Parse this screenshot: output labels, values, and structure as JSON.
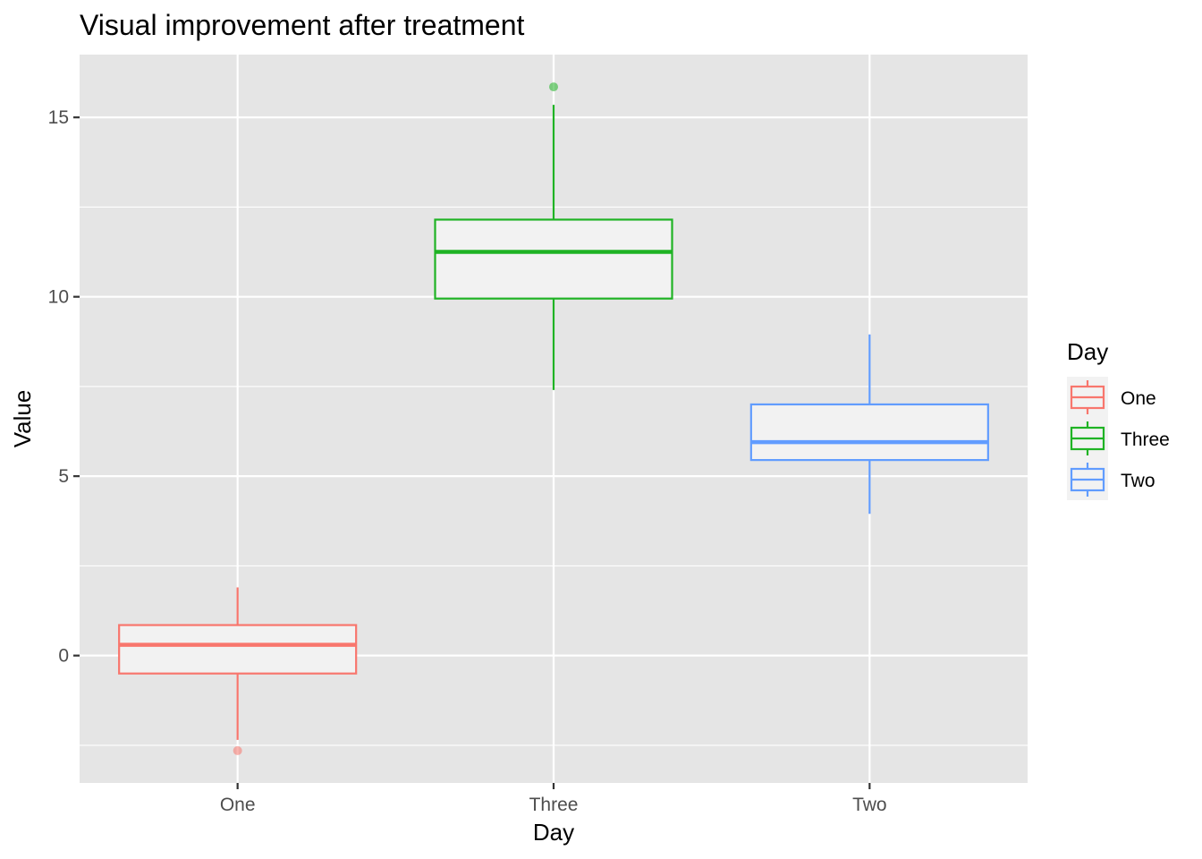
{
  "chart_data": {
    "type": "box",
    "title": "Visual improvement after treatment",
    "xlabel": "Day",
    "ylabel": "Value",
    "categories": [
      "One",
      "Three",
      "Two"
    ],
    "ylim": [
      -3.55,
      16.75
    ],
    "y_ticks": [
      0,
      5,
      10,
      15
    ],
    "grid": true,
    "legend": {
      "title": "Day",
      "position": "right",
      "entries": [
        "One",
        "Three",
        "Two"
      ]
    },
    "series": [
      {
        "category": "One",
        "color": "#F8766D",
        "whisker_low": -2.35,
        "q1": -0.5,
        "median": 0.3,
        "q3": 0.85,
        "whisker_high": 1.9,
        "outliers": [
          -2.65
        ]
      },
      {
        "category": "Three",
        "color": "#1FB324",
        "whisker_low": 7.4,
        "q1": 9.95,
        "median": 11.25,
        "q3": 12.15,
        "whisker_high": 15.35,
        "outliers": [
          15.85
        ]
      },
      {
        "category": "Two",
        "color": "#619CFF",
        "whisker_low": 3.95,
        "q1": 5.45,
        "median": 5.95,
        "q3": 7.0,
        "whisker_high": 8.95,
        "outliers": []
      }
    ]
  }
}
